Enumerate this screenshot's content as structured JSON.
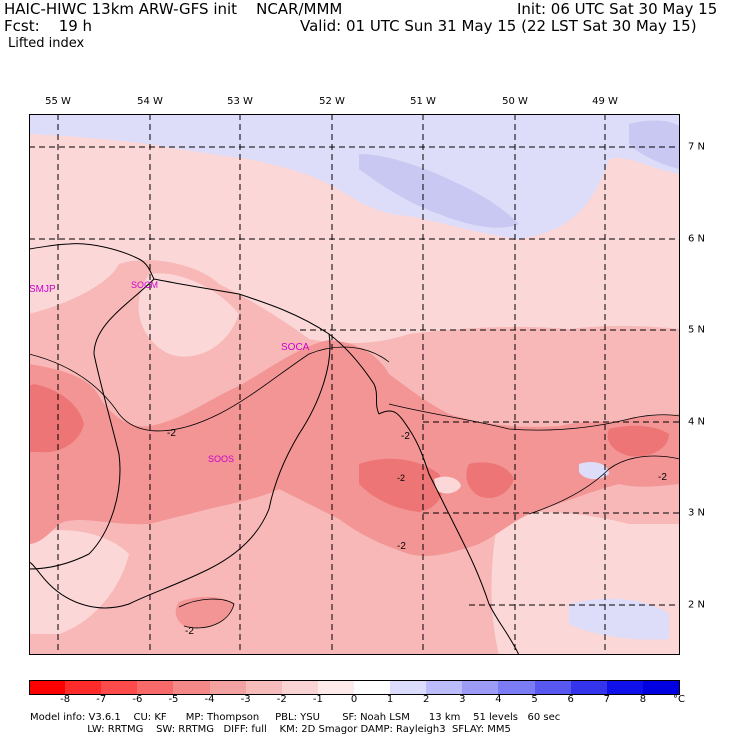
{
  "header": {
    "title_left": "HAIC-HIWC 13km ARW-GFS init    NCAR/MMM",
    "fcst_label": "Fcst:    19 h",
    "field_name": "Lifted index",
    "init_text": "Init: 06 UTC Sat 30 May 15",
    "valid_text": "Valid: 01 UTC Sun 31 May 15 (22 LST Sat 30 May 15)"
  },
  "map": {
    "longitude_labels": [
      "55 W",
      "54 W",
      "53 W",
      "52 W",
      "51 W",
      "50 W",
      "49 W"
    ],
    "latitude_labels": [
      "7 N",
      "6 N",
      "5 N",
      "4 N",
      "3 N",
      "2 N"
    ],
    "stations": [
      "SMJP",
      "SOCM",
      "SOCA",
      "SOOS"
    ],
    "contour_labels": [
      "-2",
      "-2",
      "-2",
      "-2",
      "-2",
      "-2"
    ],
    "colors": {
      "pale_pink": "#fbd7d7",
      "light_pink": "#f8b8b8",
      "medium_pink": "#f39595",
      "deep_pink": "#ee7575",
      "pale_blue": "#ddddfa",
      "light_blue": "#c8c8f3",
      "station": "#cc00cc"
    }
  },
  "colorbar": {
    "labels": [
      "-8",
      "-7",
      "-6",
      "-5",
      "-4",
      "-3",
      "-2",
      "-1",
      "0",
      "1",
      "2",
      "3",
      "4",
      "5",
      "6",
      "7",
      "8"
    ],
    "unit": "°C",
    "colors": [
      "#ff0000",
      "#ff2b2b",
      "#fd4b4b",
      "#f86a6a",
      "#f48787",
      "#f3a2a2",
      "#f6bcbc",
      "#fad4d4",
      "#fdeaea",
      "#ffffff",
      "#dcdcfd",
      "#bcbcfa",
      "#9c9cf7",
      "#7b7bf3",
      "#5858f0",
      "#3434ed",
      "#1010ea",
      "#0000e0"
    ]
  },
  "footer": {
    "line1": "Model info: V3.6.1    CU: KF      MP: Thompson     PBL: YSU       SF: Noah LSM      13 km    51 levels   60 sec",
    "line2": "                  LW: RRTMG    SW: RRTMG   DIFF: full    KM: 2D Smagor DAMP: Rayleigh3  SFLAY: MM5"
  }
}
